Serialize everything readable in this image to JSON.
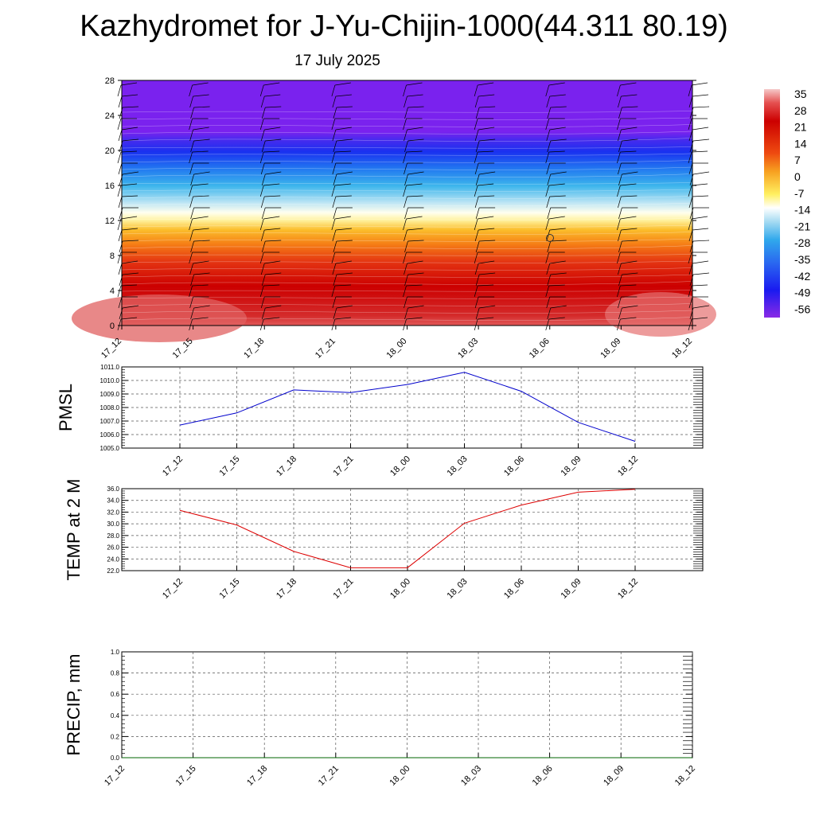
{
  "title": "Kazhydromet for J-Yu-Chijin-1000(44.311 80.19)",
  "subtitle": "17 July 2025",
  "time_labels": [
    "17_12",
    "17_15",
    "17_18",
    "17_21",
    "18_00",
    "18_03",
    "18_06",
    "18_09",
    "18_12"
  ],
  "chart_data": [
    {
      "type": "heatmap",
      "name": "vertical-temperature-section",
      "x_categories": [
        "17_12",
        "17_15",
        "17_18",
        "17_21",
        "18_00",
        "18_03",
        "18_06",
        "18_09",
        "18_12"
      ],
      "yticks": [
        0,
        4,
        8,
        12,
        16,
        20,
        24,
        28
      ],
      "ylim": [
        0,
        28
      ],
      "colorbar_labels": [
        35,
        28,
        21,
        14,
        7,
        0,
        -7,
        -14,
        -21,
        -28,
        -35,
        -42,
        -49,
        -56
      ],
      "wind_barbs": true
    },
    {
      "type": "line",
      "name": "PMSL",
      "ylabel": "PMSL",
      "color": "#0000cc",
      "categories": [
        "17_12",
        "17_15",
        "17_18",
        "17_21",
        "18_00",
        "18_03",
        "18_06",
        "18_09",
        "18_12"
      ],
      "values": [
        1006.7,
        1007.6,
        1009.3,
        1009.1,
        1009.7,
        1010.6,
        1009.2,
        1006.9,
        1005.5
      ],
      "ylim": [
        1005.0,
        1011.0
      ],
      "yticks": [
        "1005.0",
        "1006.0",
        "1007.0",
        "1008.0",
        "1009.0",
        "1010.0",
        "1011.0"
      ],
      "grid": true
    },
    {
      "type": "line",
      "name": "TEMP at 2 M",
      "ylabel": "TEMP at 2 M",
      "color": "#dd0000",
      "categories": [
        "17_12",
        "17_15",
        "17_18",
        "17_21",
        "18_00",
        "18_03",
        "18_06",
        "18_09",
        "18_12"
      ],
      "values": [
        32.3,
        29.8,
        25.3,
        22.5,
        22.5,
        30.1,
        33.2,
        35.4,
        35.9
      ],
      "ylim": [
        22.0,
        36.0
      ],
      "yticks": [
        "22.0",
        "24.0",
        "26.0",
        "28.0",
        "30.0",
        "32.0",
        "34.0",
        "36.0"
      ],
      "grid": true
    },
    {
      "type": "line",
      "name": "PRECIP, mm",
      "ylabel": "PRECIP, mm",
      "color": "#006600",
      "categories": [
        "17_12",
        "17_15",
        "17_18",
        "17_21",
        "18_00",
        "18_03",
        "18_06",
        "18_09",
        "18_12"
      ],
      "values": [
        0,
        0,
        0,
        0,
        0,
        0,
        0,
        0,
        0
      ],
      "ylim": [
        0.0,
        1.0
      ],
      "yticks": [
        "0.0",
        "0.2",
        "0.4",
        "0.6",
        "0.8",
        "1.0"
      ],
      "grid": true
    }
  ]
}
